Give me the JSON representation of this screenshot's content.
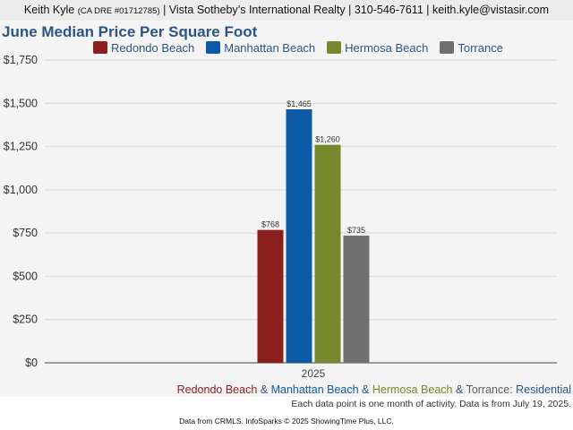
{
  "header": {
    "agent": "Keith Kyle",
    "dre": "(CA DRE #01712785)",
    "rest": "| Vista Sotheby’s International Realty | 310-546-7611 | keith.kyle@vistasir.com"
  },
  "colors": {
    "title": "#2c5585",
    "redondo": "#8b1f1c",
    "manhattan": "#0d5ba6",
    "hermosa": "#78892d",
    "torrance": "#6f6f6f",
    "grid": "#d6d6d6",
    "axis": "#444444"
  },
  "chart_data": {
    "type": "bar",
    "title": "June Median Price Per Square Foot",
    "categories": [
      "2025"
    ],
    "series": [
      {
        "name": "Redondo Beach",
        "values": [
          768
        ],
        "color": "#8b1f1c",
        "value_label": "$768"
      },
      {
        "name": "Manhattan Beach",
        "values": [
          1465
        ],
        "color": "#0d5ba6",
        "value_label": "$1,465"
      },
      {
        "name": "Hermosa Beach",
        "values": [
          1260
        ],
        "color": "#78892d",
        "value_label": "$1,260"
      },
      {
        "name": "Torrance",
        "values": [
          735
        ],
        "color": "#6f6f6f",
        "value_label": "$735"
      }
    ],
    "ylim": [
      0,
      1750
    ],
    "yticks": [
      0,
      250,
      500,
      750,
      1000,
      1250,
      1500,
      1750
    ],
    "ytick_labels": [
      "$0",
      "$250",
      "$500",
      "$750",
      "$1,000",
      "$1,250",
      "$1,500",
      "$1,750"
    ],
    "grid": true,
    "legend_position": "top"
  },
  "caption": {
    "part1": "Redondo Beach",
    "sep1": " & ",
    "part2": "Manhattan Beach",
    "sep2": " & ",
    "part3": "Hermosa Beach",
    "sep3": " & ",
    "part4": "Torrance",
    "sep4": ": ",
    "part5": "Residential"
  },
  "note": "Each data point is one month of activity. Data is from July 19, 2025.",
  "source": "Data from CRMLS. InfoSparks © 2025 ShowingTime Plus, LLC."
}
